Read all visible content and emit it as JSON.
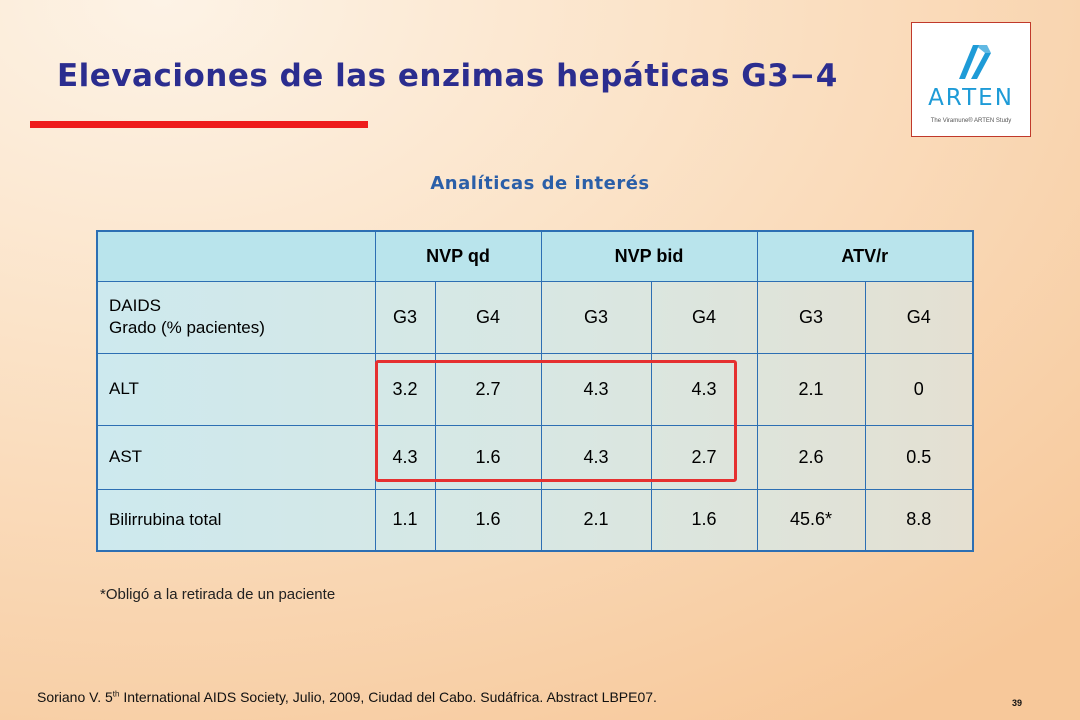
{
  "slide": {
    "title": "Elevaciones de las enzimas hepáticas G3−4",
    "subtitle": "Analíticas de interés",
    "accent_color": "#ee1c1c",
    "title_color": "#2b2d8f",
    "logo": {
      "word": "ARTEN",
      "tagline": "The Viramune® ARTEN Study",
      "color": "#1e9bd7"
    },
    "footnote": "*Obligó a la retirada de un paciente",
    "citation": {
      "prefix": "Soriano V. 5",
      "sup": "th",
      "rest": " International AIDS Society, Julio, 2009, Ciudad del Cabo. Sudáfrica. Abstract LBPE07."
    },
    "page_number": "39"
  },
  "table": {
    "groups": [
      "NVP qd",
      "NVP bid",
      "ATV/r"
    ],
    "grade_label_line1": "DAIDS",
    "grade_label_line2": "Grado (% pacientes)",
    "grades": [
      "G3",
      "G4",
      "G3",
      "G4",
      "G3",
      "G4"
    ],
    "rows": [
      {
        "label": "ALT",
        "values": [
          "3.2",
          "2.7",
          "4.3",
          "4.3",
          "2.1",
          "0"
        ]
      },
      {
        "label": "AST",
        "values": [
          "4.3",
          "1.6",
          "4.3",
          "2.7",
          "2.6",
          "0.5"
        ]
      },
      {
        "label": "Bilirrubina total",
        "values": [
          "1.1",
          "1.6",
          "2.1",
          "1.6",
          "45.6*",
          "8.8"
        ]
      }
    ],
    "highlight_color": "#e53030"
  }
}
